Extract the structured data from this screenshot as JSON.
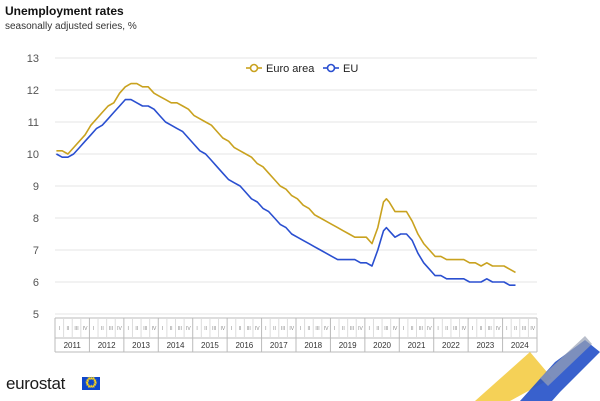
{
  "title": "Unemployment rates",
  "subtitle": "seasonally adjusted series, %",
  "logo": "eurostat",
  "colors": {
    "euro_area": "#c9a21f",
    "eu": "#2a4fd0",
    "grid": "#e6e6e6",
    "axis_text": "#555555",
    "logo_blue": "#0e47cb",
    "logo_yellow": "#ffd617"
  },
  "chart_data": {
    "type": "line",
    "title": "Unemployment rates",
    "subtitle": "seasonally adjusted series, %",
    "ylim": [
      5,
      13
    ],
    "yticks": [
      "5",
      "6",
      "7",
      "8",
      "9",
      "10",
      "11",
      "12",
      "13"
    ],
    "grid": "horizontal",
    "legend_position": "top-center",
    "years": [
      "2011",
      "2012",
      "2013",
      "2014",
      "2015",
      "2016",
      "2017",
      "2018",
      "2019",
      "2020",
      "2021",
      "2022",
      "2023",
      "2024"
    ],
    "quarter_labels": [
      "I",
      "II",
      "III",
      "IV"
    ],
    "x_range": [
      "2011-01",
      "2024-05"
    ],
    "series": [
      {
        "name": "Euro area",
        "color": "#c9a21f",
        "points": [
          [
            "2011-01",
            10.1
          ],
          [
            "2011-03",
            10.1
          ],
          [
            "2011-05",
            10.0
          ],
          [
            "2011-07",
            10.2
          ],
          [
            "2011-09",
            10.4
          ],
          [
            "2011-11",
            10.6
          ],
          [
            "2012-01",
            10.9
          ],
          [
            "2012-03",
            11.1
          ],
          [
            "2012-05",
            11.3
          ],
          [
            "2012-07",
            11.5
          ],
          [
            "2012-09",
            11.6
          ],
          [
            "2012-11",
            11.9
          ],
          [
            "2013-01",
            12.1
          ],
          [
            "2013-03",
            12.2
          ],
          [
            "2013-05",
            12.2
          ],
          [
            "2013-07",
            12.1
          ],
          [
            "2013-09",
            12.1
          ],
          [
            "2013-11",
            11.9
          ],
          [
            "2014-01",
            11.8
          ],
          [
            "2014-03",
            11.7
          ],
          [
            "2014-05",
            11.6
          ],
          [
            "2014-07",
            11.6
          ],
          [
            "2014-09",
            11.5
          ],
          [
            "2014-11",
            11.4
          ],
          [
            "2015-01",
            11.2
          ],
          [
            "2015-03",
            11.1
          ],
          [
            "2015-05",
            11.0
          ],
          [
            "2015-07",
            10.9
          ],
          [
            "2015-09",
            10.7
          ],
          [
            "2015-11",
            10.5
          ],
          [
            "2016-01",
            10.4
          ],
          [
            "2016-03",
            10.2
          ],
          [
            "2016-05",
            10.1
          ],
          [
            "2016-07",
            10.0
          ],
          [
            "2016-09",
            9.9
          ],
          [
            "2016-11",
            9.7
          ],
          [
            "2017-01",
            9.6
          ],
          [
            "2017-03",
            9.4
          ],
          [
            "2017-05",
            9.2
          ],
          [
            "2017-07",
            9.0
          ],
          [
            "2017-09",
            8.9
          ],
          [
            "2017-11",
            8.7
          ],
          [
            "2018-01",
            8.6
          ],
          [
            "2018-03",
            8.4
          ],
          [
            "2018-05",
            8.3
          ],
          [
            "2018-07",
            8.1
          ],
          [
            "2018-09",
            8.0
          ],
          [
            "2018-11",
            7.9
          ],
          [
            "2019-01",
            7.8
          ],
          [
            "2019-03",
            7.7
          ],
          [
            "2019-05",
            7.6
          ],
          [
            "2019-07",
            7.5
          ],
          [
            "2019-09",
            7.4
          ],
          [
            "2019-11",
            7.4
          ],
          [
            "2020-01",
            7.4
          ],
          [
            "2020-03",
            7.2
          ],
          [
            "2020-05",
            7.7
          ],
          [
            "2020-07",
            8.5
          ],
          [
            "2020-08",
            8.6
          ],
          [
            "2020-09",
            8.5
          ],
          [
            "2020-11",
            8.2
          ],
          [
            "2021-01",
            8.2
          ],
          [
            "2021-03",
            8.2
          ],
          [
            "2021-05",
            7.9
          ],
          [
            "2021-07",
            7.5
          ],
          [
            "2021-09",
            7.2
          ],
          [
            "2021-11",
            7.0
          ],
          [
            "2022-01",
            6.8
          ],
          [
            "2022-03",
            6.8
          ],
          [
            "2022-05",
            6.7
          ],
          [
            "2022-07",
            6.7
          ],
          [
            "2022-09",
            6.7
          ],
          [
            "2022-11",
            6.7
          ],
          [
            "2023-01",
            6.6
          ],
          [
            "2023-03",
            6.6
          ],
          [
            "2023-05",
            6.5
          ],
          [
            "2023-07",
            6.6
          ],
          [
            "2023-09",
            6.5
          ],
          [
            "2023-11",
            6.5
          ],
          [
            "2024-01",
            6.5
          ],
          [
            "2024-03",
            6.4
          ],
          [
            "2024-05",
            6.3
          ]
        ]
      },
      {
        "name": "EU",
        "color": "#2a4fd0",
        "points": [
          [
            "2011-01",
            10.0
          ],
          [
            "2011-03",
            9.9
          ],
          [
            "2011-05",
            9.9
          ],
          [
            "2011-07",
            10.0
          ],
          [
            "2011-09",
            10.2
          ],
          [
            "2011-11",
            10.4
          ],
          [
            "2012-01",
            10.6
          ],
          [
            "2012-03",
            10.8
          ],
          [
            "2012-05",
            10.9
          ],
          [
            "2012-07",
            11.1
          ],
          [
            "2012-09",
            11.3
          ],
          [
            "2012-11",
            11.5
          ],
          [
            "2013-01",
            11.7
          ],
          [
            "2013-03",
            11.7
          ],
          [
            "2013-05",
            11.6
          ],
          [
            "2013-07",
            11.5
          ],
          [
            "2013-09",
            11.5
          ],
          [
            "2013-11",
            11.4
          ],
          [
            "2014-01",
            11.2
          ],
          [
            "2014-03",
            11.0
          ],
          [
            "2014-05",
            10.9
          ],
          [
            "2014-07",
            10.8
          ],
          [
            "2014-09",
            10.7
          ],
          [
            "2014-11",
            10.5
          ],
          [
            "2015-01",
            10.3
          ],
          [
            "2015-03",
            10.1
          ],
          [
            "2015-05",
            10.0
          ],
          [
            "2015-07",
            9.8
          ],
          [
            "2015-09",
            9.6
          ],
          [
            "2015-11",
            9.4
          ],
          [
            "2016-01",
            9.2
          ],
          [
            "2016-03",
            9.1
          ],
          [
            "2016-05",
            9.0
          ],
          [
            "2016-07",
            8.8
          ],
          [
            "2016-09",
            8.6
          ],
          [
            "2016-11",
            8.5
          ],
          [
            "2017-01",
            8.3
          ],
          [
            "2017-03",
            8.2
          ],
          [
            "2017-05",
            8.0
          ],
          [
            "2017-07",
            7.8
          ],
          [
            "2017-09",
            7.7
          ],
          [
            "2017-11",
            7.5
          ],
          [
            "2018-01",
            7.4
          ],
          [
            "2018-03",
            7.3
          ],
          [
            "2018-05",
            7.2
          ],
          [
            "2018-07",
            7.1
          ],
          [
            "2018-09",
            7.0
          ],
          [
            "2018-11",
            6.9
          ],
          [
            "2019-01",
            6.8
          ],
          [
            "2019-03",
            6.7
          ],
          [
            "2019-05",
            6.7
          ],
          [
            "2019-07",
            6.7
          ],
          [
            "2019-09",
            6.7
          ],
          [
            "2019-11",
            6.6
          ],
          [
            "2020-01",
            6.6
          ],
          [
            "2020-03",
            6.5
          ],
          [
            "2020-05",
            7.0
          ],
          [
            "2020-07",
            7.6
          ],
          [
            "2020-08",
            7.7
          ],
          [
            "2020-09",
            7.6
          ],
          [
            "2020-11",
            7.4
          ],
          [
            "2021-01",
            7.5
          ],
          [
            "2021-03",
            7.5
          ],
          [
            "2021-05",
            7.3
          ],
          [
            "2021-07",
            6.9
          ],
          [
            "2021-09",
            6.6
          ],
          [
            "2021-11",
            6.4
          ],
          [
            "2022-01",
            6.2
          ],
          [
            "2022-03",
            6.2
          ],
          [
            "2022-05",
            6.1
          ],
          [
            "2022-07",
            6.1
          ],
          [
            "2022-09",
            6.1
          ],
          [
            "2022-11",
            6.1
          ],
          [
            "2023-01",
            6.0
          ],
          [
            "2023-03",
            6.0
          ],
          [
            "2023-05",
            6.0
          ],
          [
            "2023-07",
            6.1
          ],
          [
            "2023-09",
            6.0
          ],
          [
            "2023-11",
            6.0
          ],
          [
            "2024-01",
            6.0
          ],
          [
            "2024-03",
            5.9
          ],
          [
            "2024-05",
            5.9
          ]
        ]
      }
    ]
  }
}
